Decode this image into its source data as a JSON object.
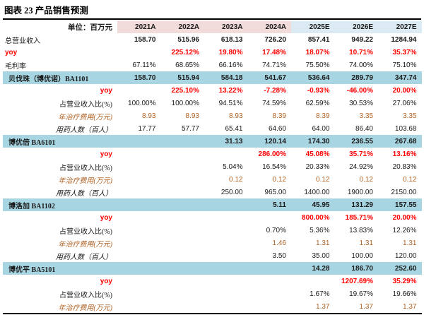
{
  "title": "图表 23 产品销售预测",
  "colors": {
    "hist_header_bg": "#f2dcdb",
    "est_header_bg": "#dcebf3",
    "section_row_bg": "#a7d5e2",
    "yoy_text": "#ff0000",
    "cost_text": "#b06224",
    "border": "#000000"
  },
  "table": {
    "unit_label": "单位：百万元",
    "columns": [
      "2021A",
      "2022A",
      "2023A",
      "2024A",
      "2025E",
      "2026E",
      "2027E"
    ],
    "rows": [
      {
        "label": "总营业收入",
        "type": "total",
        "values": [
          "158.70",
          "515.96",
          "618.13",
          "726.20",
          "857.41",
          "949.22",
          "1284.94"
        ]
      },
      {
        "label": "yoy",
        "type": "yoy",
        "values": [
          "",
          "225.12%",
          "19.80%",
          "17.48%",
          "18.07%",
          "10.71%",
          "35.37%"
        ]
      },
      {
        "label": "毛利率",
        "type": "plain-left",
        "values": [
          "67.11%",
          "68.65%",
          "66.16%",
          "74.71%",
          "75.50%",
          "74.00%",
          "75.10%"
        ]
      },
      {
        "label": "贝伐珠（博优诺）BA1101",
        "type": "section",
        "values": [
          "158.70",
          "515.94",
          "584.18",
          "541.67",
          "536.64",
          "289.79",
          "347.74"
        ]
      },
      {
        "label": "yoy",
        "type": "yoy-right",
        "values": [
          "",
          "225.10%",
          "13.22%",
          "-7.28%",
          "-0.93%",
          "-46.00%",
          "20.00%"
        ]
      },
      {
        "label": "占营业收入比(%)",
        "type": "sub",
        "values": [
          "100.00%",
          "100.00%",
          "94.51%",
          "74.59%",
          "62.59%",
          "30.53%",
          "27.06%"
        ]
      },
      {
        "label": "年治疗费用(万元)",
        "type": "cost",
        "values": [
          "8.93",
          "8.93",
          "8.93",
          "8.39",
          "8.39",
          "3.35",
          "3.35"
        ]
      },
      {
        "label": "用药人数（百人）",
        "type": "sub-italic",
        "values": [
          "17.77",
          "57.77",
          "65.41",
          "64.60",
          "64.00",
          "86.40",
          "103.68"
        ]
      },
      {
        "label": "博优倍 BA6101",
        "type": "section",
        "values": [
          "",
          "",
          "31.13",
          "120.14",
          "174.30",
          "236.55",
          "267.68"
        ]
      },
      {
        "label": "yoy",
        "type": "yoy-right",
        "values": [
          "",
          "",
          "",
          "286.00%",
          "45.08%",
          "35.71%",
          "13.16%"
        ]
      },
      {
        "label": "占营业收入比(%)",
        "type": "sub",
        "values": [
          "",
          "",
          "5.04%",
          "16.54%",
          "20.33%",
          "24.92%",
          "20.83%"
        ]
      },
      {
        "label": "年治疗费用(万元)",
        "type": "cost",
        "values": [
          "",
          "",
          "0.12",
          "0.12",
          "0.12",
          "0.12",
          "0.12"
        ]
      },
      {
        "label": "用药人数（百人）",
        "type": "sub-italic",
        "values": [
          "",
          "",
          "250.00",
          "965.00",
          "1400.00",
          "1900.00",
          "2150.00"
        ]
      },
      {
        "label": "博洛加 BA1102",
        "type": "section",
        "values": [
          "",
          "",
          "",
          "5.11",
          "45.95",
          "131.29",
          "157.55"
        ]
      },
      {
        "label": "yoy",
        "type": "yoy-right",
        "values": [
          "",
          "",
          "",
          "",
          "800.00%",
          "185.71%",
          "20.00%"
        ]
      },
      {
        "label": "占营业收入比(%)",
        "type": "sub",
        "values": [
          "",
          "",
          "",
          "0.70%",
          "5.36%",
          "13.83%",
          "12.26%"
        ]
      },
      {
        "label": "年治疗费用(万元)",
        "type": "cost",
        "values": [
          "",
          "",
          "",
          "1.46",
          "1.31",
          "1.31",
          "1.31"
        ]
      },
      {
        "label": "用药人数（百人）",
        "type": "sub-italic",
        "values": [
          "",
          "",
          "",
          "3.50",
          "35.00",
          "100.00",
          "120.00"
        ]
      },
      {
        "label": "博优平 BA5101",
        "type": "section",
        "values": [
          "",
          "",
          "",
          "",
          "14.28",
          "186.70",
          "252.60"
        ]
      },
      {
        "label": "yoy",
        "type": "yoy-right",
        "values": [
          "",
          "",
          "",
          "",
          "",
          "1207.69%",
          "35.29%"
        ]
      },
      {
        "label": "占营业收入比(%)",
        "type": "sub",
        "values": [
          "",
          "",
          "",
          "",
          "1.67%",
          "19.67%",
          "19.66%"
        ]
      },
      {
        "label": "年治疗费用(万元)",
        "type": "cost",
        "values": [
          "",
          "",
          "",
          "",
          "1.37",
          "1.37",
          "1.37"
        ]
      }
    ]
  }
}
